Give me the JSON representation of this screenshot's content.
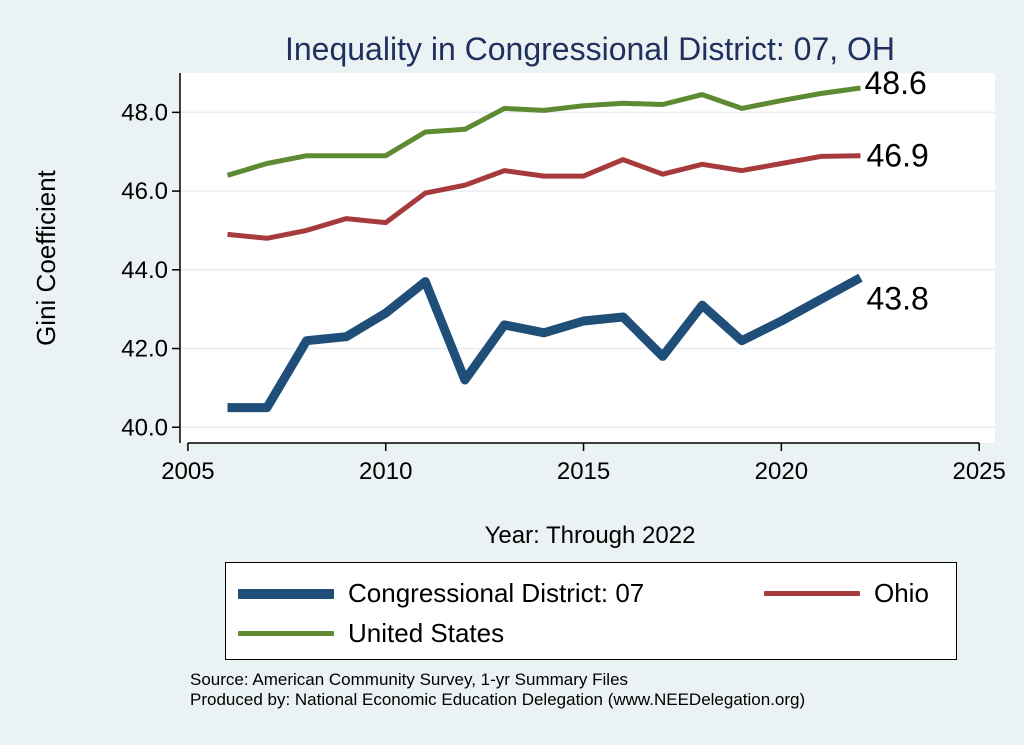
{
  "chart_data": {
    "type": "line",
    "title": "Inequality in Congressional District:  07, OH",
    "xlabel": "Year: Through 2022",
    "ylabel": "Gini Coefficient",
    "xlim": [
      2004.8,
      2025.4
    ],
    "ylim": [
      39.6,
      49.0
    ],
    "xticks": [
      2005,
      2010,
      2015,
      2020,
      2025
    ],
    "xtick_labels": [
      "2005",
      "2010",
      "2015",
      "2020",
      "2025"
    ],
    "yticks": [
      40,
      42,
      44,
      46,
      48
    ],
    "ytick_labels": [
      "40.0",
      "42.0",
      "44.0",
      "46.0",
      "48.0"
    ],
    "grid": true,
    "legend_position": "bottom",
    "x": [
      2006,
      2007,
      2008,
      2009,
      2010,
      2011,
      2012,
      2013,
      2014,
      2015,
      2016,
      2017,
      2018,
      2019,
      2020,
      2021,
      2022
    ],
    "series": [
      {
        "name": "Congressional District:  07",
        "color": "#1f4e79",
        "values": [
          40.5,
          40.5,
          42.2,
          42.3,
          42.9,
          43.7,
          41.2,
          42.6,
          42.4,
          42.7,
          42.8,
          41.8,
          43.1,
          42.2,
          42.7,
          43.25,
          43.8
        ],
        "end_label": "43.8"
      },
      {
        "name": "Ohio",
        "color": "#a73a3c",
        "values": [
          44.9,
          44.8,
          45.0,
          45.3,
          45.2,
          45.95,
          46.15,
          46.52,
          46.38,
          46.38,
          46.8,
          46.43,
          46.68,
          46.52,
          46.7,
          46.88,
          46.9
        ],
        "end_label": "46.9"
      },
      {
        "name": "United States",
        "color": "#5e8a33",
        "values": [
          46.4,
          46.7,
          46.9,
          46.9,
          46.9,
          47.5,
          47.57,
          48.1,
          48.05,
          48.17,
          48.23,
          48.2,
          48.45,
          48.1,
          48.3,
          48.48,
          48.62
        ],
        "end_label": "48.6"
      }
    ]
  },
  "legend": {
    "items": [
      {
        "label": "Congressional District:  07",
        "color": "#1f4e79"
      },
      {
        "label": "Ohio",
        "color": "#a73a3c"
      },
      {
        "label": "United States",
        "color": "#5e8a33"
      }
    ]
  },
  "source": {
    "line1": "Source: American Community Survey, 1-yr Summary Files",
    "line2": "Produced by: National Economic Education Delegation (www.NEEDelegation.org)"
  }
}
